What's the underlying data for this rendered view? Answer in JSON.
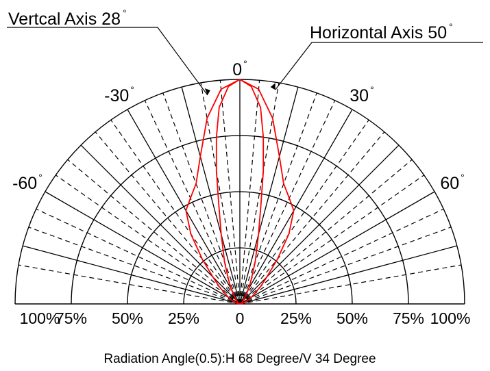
{
  "chart_data": {
    "type": "polar-radiation",
    "title": "",
    "caption": "Radiation Angle(0.5):H 68 Degree/V 34 Degree",
    "angle_range": [
      -90,
      90
    ],
    "radial_range": [
      0,
      100
    ],
    "grid": true,
    "angle_labels": [
      {
        "angle": 0,
        "text": "0"
      },
      {
        "angle": -30,
        "text": "-30"
      },
      {
        "angle": 30,
        "text": "30"
      },
      {
        "angle": -60,
        "text": "-60"
      },
      {
        "angle": 60,
        "text": "60"
      }
    ],
    "degree_symbol": "°",
    "radial_labels": [
      {
        "value": -100,
        "text": "100%"
      },
      {
        "value": -75,
        "text": "75%"
      },
      {
        "value": -50,
        "text": "50%"
      },
      {
        "value": -25,
        "text": "25%"
      },
      {
        "value": 0,
        "text": "0"
      },
      {
        "value": 25,
        "text": "25%"
      },
      {
        "value": 50,
        "text": "50%"
      },
      {
        "value": 75,
        "text": "75%"
      },
      {
        "value": 100,
        "text": "100%"
      }
    ],
    "solid_spokes": [
      -75,
      -60,
      -45,
      -30,
      -15,
      0,
      15,
      30,
      45,
      60,
      75
    ],
    "dashed_spokes": [
      -80,
      -70,
      -65,
      -55,
      -50,
      -40,
      -35,
      -25,
      -20,
      -10,
      -5,
      5,
      10,
      20,
      25,
      35,
      40,
      50,
      55,
      65,
      70,
      80
    ],
    "series": [
      {
        "name": "Horizontal Axis 50°",
        "color": "#ff0000",
        "points": [
          [
            -90,
            0
          ],
          [
            -80,
            1
          ],
          [
            -70,
            3
          ],
          [
            -60,
            6
          ],
          [
            -50,
            12
          ],
          [
            -45,
            17
          ],
          [
            -40,
            26
          ],
          [
            -35,
            38
          ],
          [
            -30,
            48
          ],
          [
            -25,
            52
          ],
          [
            -20,
            57
          ],
          [
            -15,
            68
          ],
          [
            -10,
            84
          ],
          [
            -5,
            96
          ],
          [
            0,
            100
          ],
          [
            5,
            96
          ],
          [
            10,
            84
          ],
          [
            15,
            68
          ],
          [
            20,
            57
          ],
          [
            25,
            52
          ],
          [
            30,
            48
          ],
          [
            35,
            38
          ],
          [
            40,
            26
          ],
          [
            45,
            17
          ],
          [
            50,
            12
          ],
          [
            60,
            6
          ],
          [
            70,
            3
          ],
          [
            80,
            1
          ],
          [
            90,
            0
          ]
        ]
      },
      {
        "name": "Vertcal Axis 28°",
        "color": "#ff0000",
        "points": [
          [
            -90,
            0
          ],
          [
            -60,
            1
          ],
          [
            -40,
            3
          ],
          [
            -30,
            8
          ],
          [
            -25,
            12
          ],
          [
            -20,
            20
          ],
          [
            -15,
            32
          ],
          [
            -12,
            45
          ],
          [
            -10,
            60
          ],
          [
            -8,
            75
          ],
          [
            -6,
            88
          ],
          [
            -3,
            97
          ],
          [
            0,
            100
          ],
          [
            3,
            97
          ],
          [
            6,
            88
          ],
          [
            8,
            75
          ],
          [
            10,
            60
          ],
          [
            12,
            45
          ],
          [
            15,
            32
          ],
          [
            20,
            20
          ],
          [
            25,
            12
          ],
          [
            30,
            8
          ],
          [
            40,
            3
          ],
          [
            60,
            1
          ],
          [
            90,
            0
          ]
        ]
      }
    ],
    "annotations": [
      {
        "text": "Vertcal Axis 28",
        "points_to": "series-vertical"
      },
      {
        "text": "Horizontal Axis 50",
        "points_to": "series-horizontal"
      }
    ]
  }
}
